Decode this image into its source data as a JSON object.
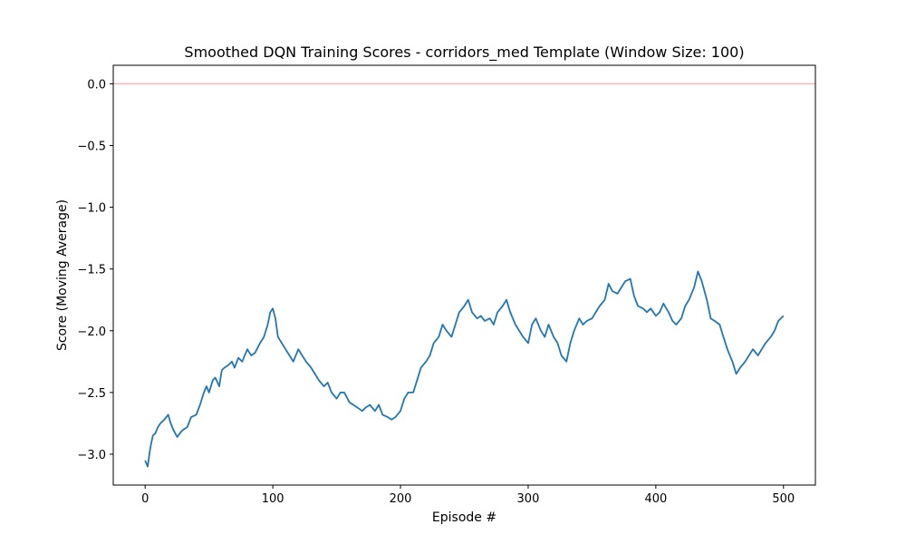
{
  "chart_data": {
    "type": "line",
    "title": "Smoothed DQN Training Scores - corridors_med Template (Window Size: 100)",
    "xlabel": "Episode #",
    "ylabel": "Score (Moving Average)",
    "xlim": [
      -25,
      525
    ],
    "ylim": [
      -3.25,
      0.15
    ],
    "xticks": [
      0,
      100,
      200,
      300,
      400,
      500
    ],
    "xtick_labels": [
      "0",
      "100",
      "200",
      "300",
      "400",
      "500"
    ],
    "yticks": [
      -3.0,
      -2.5,
      -2.0,
      -1.5,
      -1.0,
      -0.5,
      0.0
    ],
    "ytick_labels": [
      "−3.0",
      "−2.5",
      "−2.0",
      "−1.5",
      "−1.0",
      "−0.5",
      "0.0"
    ],
    "grid": false,
    "legend": "none",
    "reference_line": {
      "y": 0.0,
      "color": "#ffb3ba"
    },
    "series": [
      {
        "color": "#1f77b4",
        "x": [
          0,
          2,
          4,
          6,
          8,
          10,
          12,
          15,
          18,
          20,
          22,
          25,
          28,
          30,
          33,
          36,
          40,
          43,
          46,
          48,
          50,
          53,
          55,
          58,
          60,
          62,
          65,
          68,
          70,
          73,
          76,
          80,
          83,
          86,
          90,
          93,
          96,
          98,
          100,
          102,
          104,
          107,
          110,
          113,
          116,
          120,
          123,
          126,
          130,
          133,
          136,
          140,
          143,
          146,
          150,
          153,
          156,
          160,
          163,
          166,
          170,
          173,
          176,
          180,
          183,
          186,
          190,
          193,
          196,
          200,
          203,
          206,
          210,
          213,
          216,
          220,
          223,
          226,
          230,
          233,
          236,
          240,
          243,
          246,
          250,
          253,
          256,
          260,
          263,
          266,
          270,
          273,
          276,
          280,
          283,
          286,
          290,
          293,
          296,
          300,
          303,
          306,
          310,
          313,
          316,
          320,
          323,
          326,
          330,
          333,
          336,
          340,
          343,
          346,
          350,
          353,
          356,
          360,
          363,
          366,
          370,
          373,
          376,
          380,
          383,
          386,
          390,
          393,
          396,
          400,
          403,
          406,
          410,
          413,
          416,
          420,
          423,
          426,
          430,
          433,
          436,
          440,
          443,
          446,
          450,
          453,
          456,
          460,
          463,
          466,
          470,
          473,
          476,
          480,
          483,
          486,
          490,
          493,
          496,
          500
        ],
        "y": [
          -3.05,
          -3.1,
          -2.95,
          -2.85,
          -2.83,
          -2.78,
          -2.75,
          -2.72,
          -2.68,
          -2.75,
          -2.8,
          -2.86,
          -2.82,
          -2.8,
          -2.78,
          -2.7,
          -2.68,
          -2.6,
          -2.5,
          -2.45,
          -2.5,
          -2.4,
          -2.38,
          -2.45,
          -2.32,
          -2.3,
          -2.28,
          -2.25,
          -2.3,
          -2.22,
          -2.25,
          -2.15,
          -2.2,
          -2.18,
          -2.1,
          -2.05,
          -1.95,
          -1.85,
          -1.82,
          -1.9,
          -2.05,
          -2.1,
          -2.15,
          -2.2,
          -2.25,
          -2.15,
          -2.2,
          -2.25,
          -2.3,
          -2.35,
          -2.4,
          -2.45,
          -2.42,
          -2.5,
          -2.55,
          -2.5,
          -2.5,
          -2.58,
          -2.6,
          -2.62,
          -2.65,
          -2.62,
          -2.6,
          -2.65,
          -2.6,
          -2.68,
          -2.7,
          -2.72,
          -2.7,
          -2.65,
          -2.55,
          -2.5,
          -2.5,
          -2.4,
          -2.3,
          -2.25,
          -2.2,
          -2.1,
          -2.05,
          -1.95,
          -2.0,
          -2.05,
          -1.95,
          -1.85,
          -1.8,
          -1.75,
          -1.85,
          -1.9,
          -1.88,
          -1.92,
          -1.9,
          -1.95,
          -1.85,
          -1.8,
          -1.75,
          -1.85,
          -1.95,
          -2.0,
          -2.05,
          -2.1,
          -1.95,
          -1.9,
          -2.0,
          -2.05,
          -1.95,
          -2.05,
          -2.1,
          -2.2,
          -2.25,
          -2.1,
          -2.0,
          -1.9,
          -1.95,
          -1.92,
          -1.9,
          -1.85,
          -1.8,
          -1.75,
          -1.62,
          -1.68,
          -1.7,
          -1.65,
          -1.6,
          -1.58,
          -1.72,
          -1.8,
          -1.82,
          -1.85,
          -1.82,
          -1.88,
          -1.85,
          -1.78,
          -1.85,
          -1.92,
          -1.95,
          -1.9,
          -1.8,
          -1.75,
          -1.65,
          -1.52,
          -1.6,
          -1.75,
          -1.9,
          -1.92,
          -1.95,
          -2.05,
          -2.15,
          -2.25,
          -2.35,
          -2.3,
          -2.25,
          -2.2,
          -2.15,
          -2.2,
          -2.15,
          -2.1,
          -2.05,
          -2.0,
          -1.92,
          -1.88
        ]
      }
    ]
  }
}
